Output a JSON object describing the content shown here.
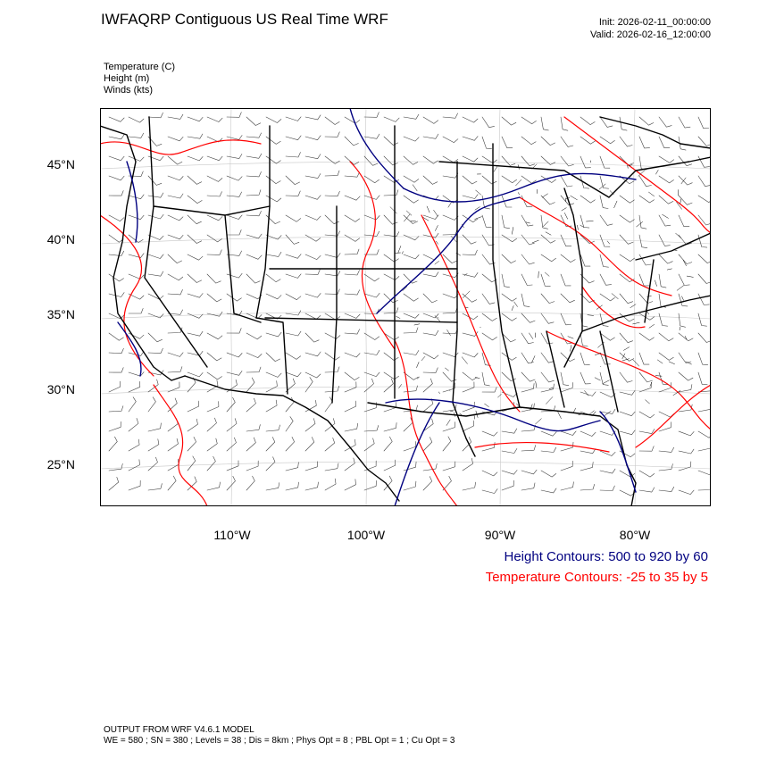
{
  "header": {
    "title": "IWFAQRP Contiguous US Real Time WRF",
    "init": "Init: 2026-02-11_00:00:00",
    "valid": "Valid: 2026-02-16_12:00:00"
  },
  "fields": [
    "Temperature   (C)",
    "Height   (m)",
    "Winds   (kts)"
  ],
  "map": {
    "lat_labels": [
      "45°N",
      "40°N",
      "35°N",
      "30°N",
      "25°N"
    ],
    "lon_labels": [
      "110°W",
      "100°W",
      "90°W",
      "80°W"
    ],
    "colors": {
      "height": "#000080",
      "temperature": "#ff0000",
      "borders": "#000000",
      "barbs": "#404040",
      "grid": "#c8c8c8"
    }
  },
  "legend": {
    "height_contours": "Height Contours: 500 to 920 by 60",
    "height_color": "#000080",
    "temperature_contours": "Temperature Contours: -25 to 35 by 5",
    "temperature_color": "#ff0000"
  },
  "footer": {
    "line1": "OUTPUT FROM WRF V4.6.1 MODEL",
    "line2": "WE = 580 ; SN = 380 ; Levels = 38 ; Dis = 8km ; Phys Opt = 8 ; PBL Opt = 1 ; Cu Opt = 3"
  }
}
